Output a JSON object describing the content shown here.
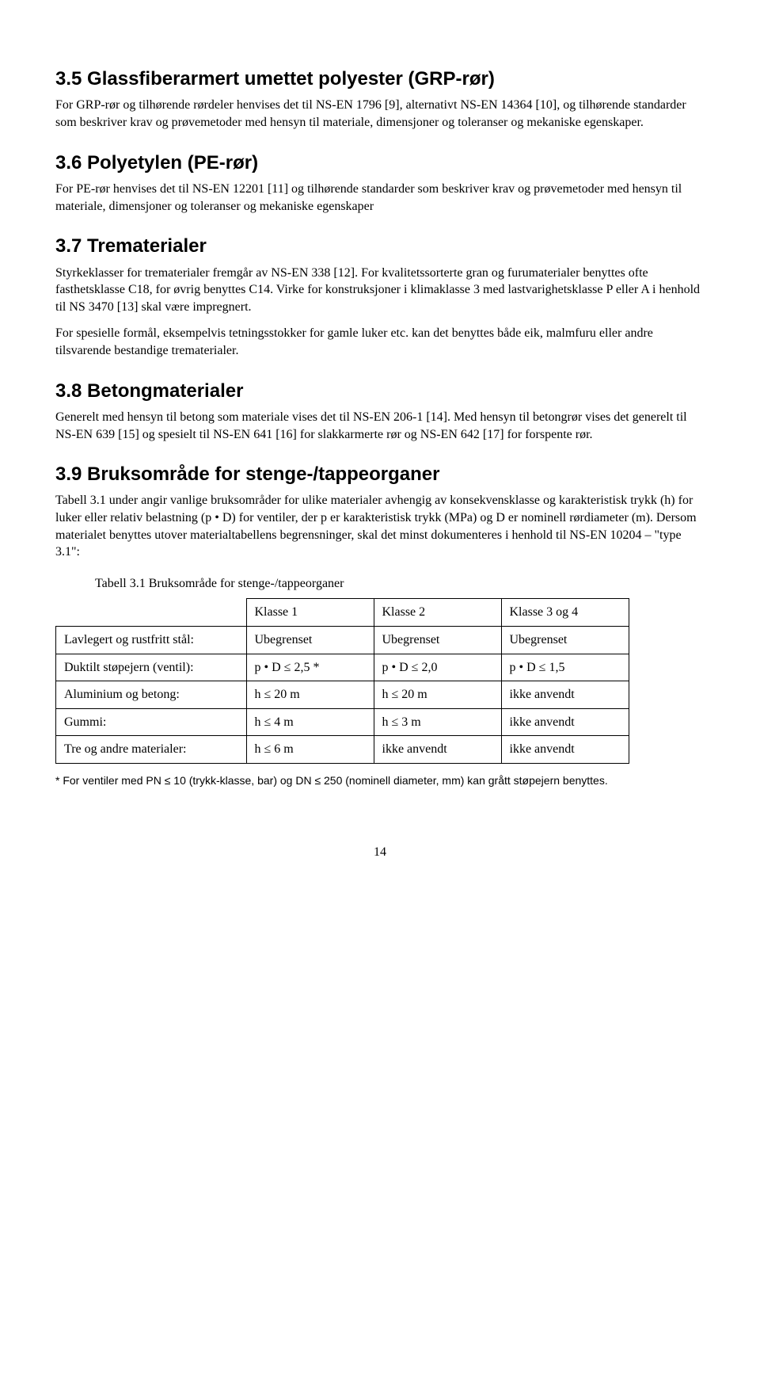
{
  "s35": {
    "heading": "3.5 Glassfiberarmert umettet polyester (GRP-rør)",
    "p1": "For GRP-rør og tilhørende rørdeler henvises det til NS-EN 1796 [9], alternativt NS-EN 14364 [10], og tilhørende standarder som beskriver krav og prøvemetoder med hensyn til materiale, dimensjoner og toleranser og mekaniske egenskaper."
  },
  "s36": {
    "heading": "3.6 Polyetylen (PE-rør)",
    "p1": "For PE-rør henvises det til NS-EN 12201 [11] og tilhørende standarder som beskriver krav og prøvemetoder med hensyn til materiale, dimensjoner og toleranser og mekaniske egenskaper"
  },
  "s37": {
    "heading": "3.7 Trematerialer",
    "p1": "Styrkeklasser for trematerialer fremgår av NS-EN 338 [12]. For kvalitetssorterte gran og furumaterialer benyttes ofte fasthetsklasse C18, for øvrig benyttes C14. Virke for konstruksjoner i klimaklasse 3 med lastvarighetsklasse P eller A i henhold til NS 3470 [13] skal være impregnert.",
    "p2": "For spesielle formål, eksempelvis tetningsstokker for gamle luker etc. kan det benyttes både eik, malmfuru eller andre tilsvarende bestandige trematerialer."
  },
  "s38": {
    "heading": "3.8 Betongmaterialer",
    "p1": "Generelt med hensyn til betong som materiale vises det til NS-EN 206-1 [14]. Med hensyn til betongrør vises det generelt til NS-EN 639 [15] og spesielt til NS-EN 641 [16] for slakkarmerte rør og NS-EN 642 [17] for forspente rør."
  },
  "s39": {
    "heading": "3.9 Bruksområde for stenge-/tappeorganer",
    "p1": "Tabell 3.1 under angir vanlige bruksområder for ulike materialer avhengig av konsekvensklasse og karakteristisk trykk (h) for luker eller relativ belastning (p • D) for ventiler, der p er karakteristisk trykk (MPa) og D er nominell rørdiameter (m). Dersom materialet benyttes utover materialtabellens begrensninger, skal det minst dokumenteres i henhold til NS-EN 10204 – \"type 3.1\":",
    "caption": "Tabell 3.1 Bruksområde for stenge-/tappeorganer",
    "table": {
      "headers": [
        "",
        "Klasse 1",
        "Klasse 2",
        "Klasse 3 og 4"
      ],
      "rows": [
        [
          "Lavlegert og rustfritt stål:",
          "Ubegrenset",
          "Ubegrenset",
          "Ubegrenset"
        ],
        [
          "Duktilt støpejern (ventil):",
          "p • D  ≤  2,5  *",
          "p • D  ≤  2,0",
          "p • D  ≤  1,5"
        ],
        [
          "Aluminium og betong:",
          "h  ≤  20 m",
          "h  ≤  20 m",
          "ikke anvendt"
        ],
        [
          "Gummi:",
          "h  ≤  4 m",
          "h  ≤  3 m",
          "ikke anvendt"
        ],
        [
          "Tre og andre materialer:",
          "h  ≤  6 m",
          "ikke anvendt",
          "ikke anvendt"
        ]
      ],
      "col_widths": [
        "220px",
        "140px",
        "140px",
        "140px"
      ]
    },
    "footnote": "* For ventiler med PN ≤ 10 (trykk-klasse, bar) og DN ≤ 250 (nominell diameter, mm) kan grått støpejern benyttes."
  },
  "page_number": "14"
}
